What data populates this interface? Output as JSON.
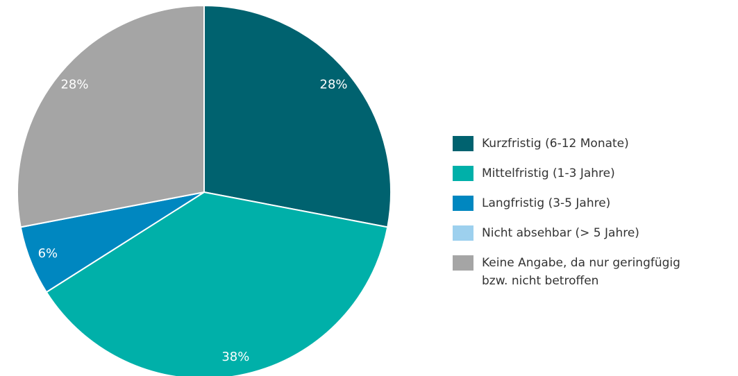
{
  "chart_data": {
    "type": "pie",
    "categories": [
      "Kurzfristig (6-12 Monate)",
      "Mittelfristig (1-3 Jahre)",
      "Langfristig (3-5 Jahre)",
      "Nicht absehbar (> 5 Jahre)",
      "Keine Angabe, da nur geringfügig bzw. nicht betroffen"
    ],
    "values": [
      28,
      38,
      6,
      0,
      28
    ],
    "value_labels": [
      "28%",
      "38%",
      "6%",
      null,
      "28%"
    ],
    "colors": [
      "#00626f",
      "#00b0a9",
      "#0087c0",
      "#9dd0ee",
      "#a5a5a5"
    ],
    "legend": "right"
  }
}
